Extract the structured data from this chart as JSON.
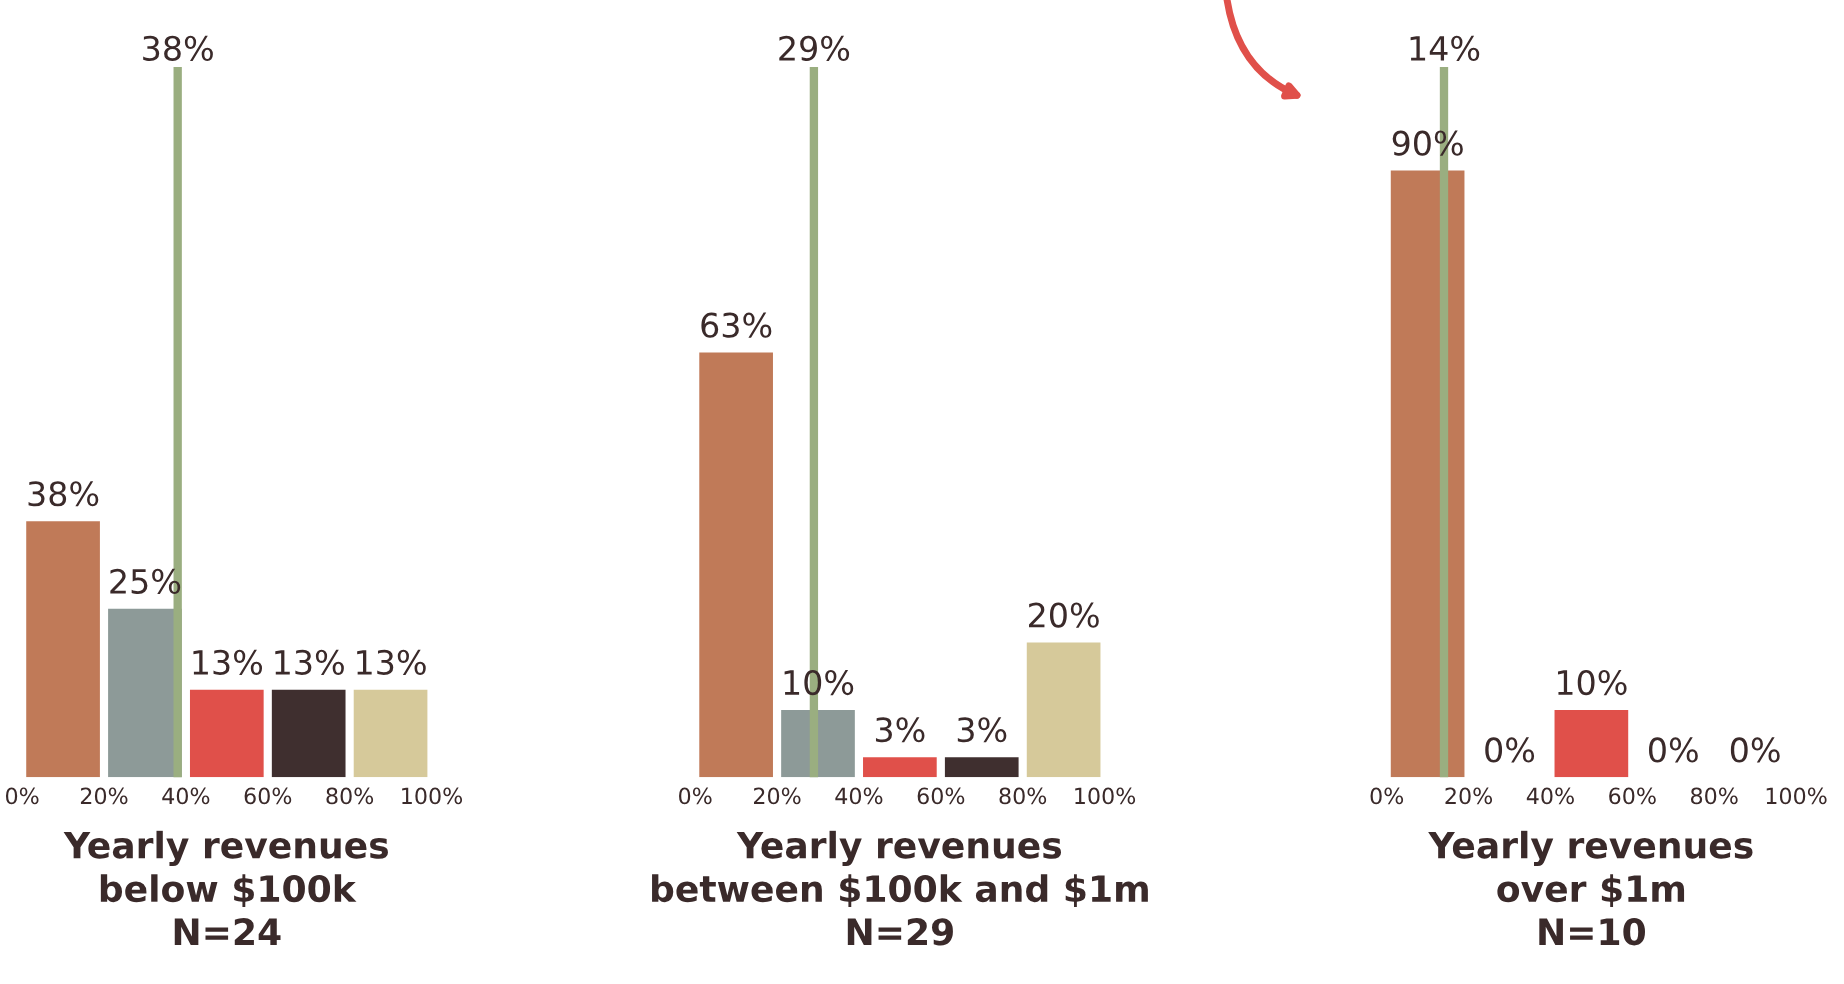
{
  "chart_data": [
    {
      "type": "bar",
      "xlabel": "Yearly revenues\nbelow $100k\nN=24",
      "x": [
        10,
        30,
        50,
        70,
        90
      ],
      "values": [
        38,
        25,
        13,
        13,
        13
      ],
      "colors": [
        "#c07a58",
        "#8d9a98",
        "#e0504a",
        "#3f2f2f",
        "#d6c99a"
      ],
      "xlim": [
        0,
        100
      ],
      "xticks": [
        {
          "value": 0,
          "label": "0%"
        },
        {
          "value": 20,
          "label": "20%"
        },
        {
          "value": 40,
          "label": "40%"
        },
        {
          "value": 60,
          "label": "60%"
        },
        {
          "value": 80,
          "label": "80%"
        },
        {
          "value": 100,
          "label": "100%"
        }
      ],
      "value_labels": [
        "38%",
        "25%",
        "13%",
        "13%",
        "13%"
      ],
      "ref_lines": [
        {
          "axis": "x",
          "value": 38,
          "label": "38%",
          "color": "#9aae80"
        }
      ],
      "tick_labels": "x"
    },
    {
      "type": "bar",
      "xlabel": "Yearly revenues\nbetween $100k and $1m\nN=29",
      "x": [
        10,
        30,
        50,
        70,
        90
      ],
      "values": [
        63,
        10,
        3,
        3,
        20
      ],
      "colors": [
        "#c07a58",
        "#8d9a98",
        "#e0504a",
        "#3f2f2f",
        "#d6c99a"
      ],
      "xlim": [
        0,
        100
      ],
      "xticks": [
        {
          "value": 0,
          "label": "0%"
        },
        {
          "value": 20,
          "label": "20%"
        },
        {
          "value": 40,
          "label": "40%"
        },
        {
          "value": 60,
          "label": "60%"
        },
        {
          "value": 80,
          "label": "80%"
        },
        {
          "value": 100,
          "label": "100%"
        }
      ],
      "value_labels": [
        "63%",
        "10%",
        "3%",
        "3%",
        "20%"
      ],
      "ref_lines": [
        {
          "axis": "x",
          "value": 29,
          "label": "29%",
          "color": "#9aae80"
        }
      ],
      "tick_labels": "x"
    },
    {
      "type": "bar",
      "xlabel": "Yearly revenues\nover $1m\nN=10",
      "x": [
        10,
        30,
        50,
        70,
        90
      ],
      "values": [
        90,
        0,
        10,
        0,
        0
      ],
      "colors": [
        "#c07a58",
        "#8d9a98",
        "#e0504a",
        "#3f2f2f",
        "#d6c99a"
      ],
      "xlim": [
        0,
        100
      ],
      "xticks": [
        {
          "value": 0,
          "label": "0%"
        },
        {
          "value": 20,
          "label": "20%"
        },
        {
          "value": 40,
          "label": "40%"
        },
        {
          "value": 60,
          "label": "60%"
        },
        {
          "value": 80,
          "label": "80%"
        },
        {
          "value": 100,
          "label": "100%"
        }
      ],
      "value_labels": [
        "90%",
        "0%",
        "10%",
        "0%",
        "0%"
      ],
      "ref_lines": [
        {
          "axis": "x",
          "value": 14,
          "label": "14%",
          "color": "#9aae80"
        }
      ],
      "tick_labels": "x"
    }
  ]
}
